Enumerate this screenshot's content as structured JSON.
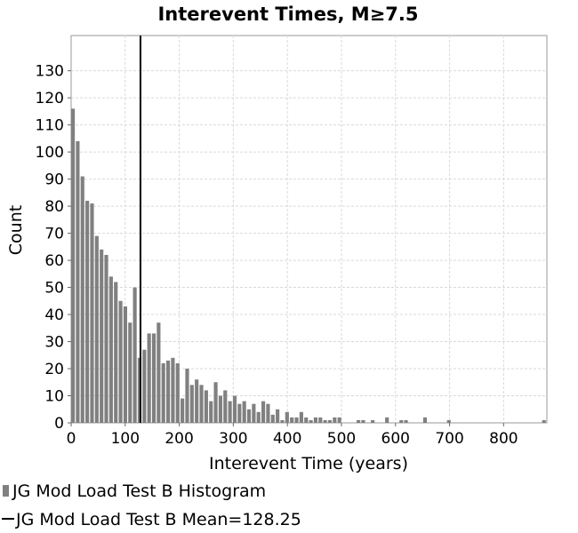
{
  "chart_data": {
    "type": "bar",
    "title": "Interevent Times, M≥7.5",
    "xlabel": "Interevent Time (years)",
    "ylabel": "Count",
    "xlim": [
      0,
      880
    ],
    "ylim": [
      0,
      143
    ],
    "bin_width": 8.8,
    "x_ticks": [
      0,
      100,
      200,
      300,
      400,
      500,
      600,
      700,
      800
    ],
    "y_ticks": [
      0,
      10,
      20,
      30,
      40,
      50,
      60,
      70,
      80,
      90,
      100,
      110,
      120,
      130
    ],
    "grid": true,
    "colors": {
      "bar": "#808080",
      "mean_line": "#000000"
    },
    "series": [
      {
        "name": "JG Mod Load Test B Histogram",
        "type": "histogram",
        "values": [
          116,
          104,
          91,
          82,
          81,
          69,
          64,
          62,
          54,
          52,
          45,
          43,
          37,
          50,
          24,
          27,
          33,
          33,
          37,
          22,
          23,
          24,
          22,
          9,
          20,
          14,
          16,
          14,
          12,
          8,
          15,
          10,
          12,
          8,
          10,
          7,
          8,
          5,
          7,
          4,
          8,
          7,
          3,
          5,
          1,
          4,
          2,
          2,
          4,
          2,
          1,
          2,
          2,
          1,
          1,
          2,
          2,
          0,
          0,
          0,
          1,
          1,
          0,
          1,
          0,
          0,
          2,
          0,
          0,
          1,
          1,
          0,
          0,
          0,
          2,
          0,
          0,
          0,
          0,
          1,
          0,
          0,
          0,
          0,
          0,
          0,
          0,
          0,
          0,
          0,
          0,
          0,
          0,
          0,
          0,
          0,
          0,
          0,
          0,
          1
        ]
      },
      {
        "name": "JG Mod Load Test B Mean=128.25",
        "type": "vline",
        "x": 128.25
      }
    ],
    "legend": {
      "placement": "bottom-left",
      "entries": [
        "JG Mod Load Test B Histogram",
        "JG Mod Load Test B Mean=128.25"
      ]
    }
  }
}
